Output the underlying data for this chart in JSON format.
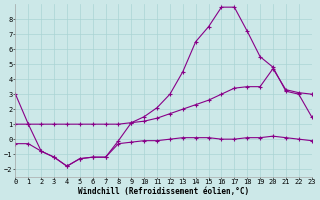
{
  "xlabel": "Windchill (Refroidissement éolien,°C)",
  "background_color": "#cce8e8",
  "line_color": "#880088",
  "xlim": [
    0,
    23
  ],
  "ylim": [
    -2.5,
    9.0
  ],
  "yticks": [
    -2,
    -1,
    0,
    1,
    2,
    3,
    4,
    5,
    6,
    7,
    8
  ],
  "xticks": [
    0,
    1,
    2,
    3,
    4,
    5,
    6,
    7,
    8,
    9,
    10,
    11,
    12,
    13,
    14,
    15,
    16,
    17,
    18,
    19,
    20,
    21,
    22,
    23
  ],
  "s1x": [
    0,
    1,
    2,
    3,
    4,
    5,
    6,
    7,
    8,
    9,
    10,
    11,
    12,
    13,
    14,
    15,
    16,
    17,
    18,
    19,
    20,
    21,
    22,
    23
  ],
  "s1y": [
    3.0,
    1.0,
    -0.8,
    -1.2,
    -1.8,
    -1.3,
    -1.2,
    -1.2,
    -0.1,
    1.1,
    1.5,
    2.1,
    3.0,
    4.5,
    6.5,
    7.5,
    8.8,
    8.8,
    7.2,
    5.5,
    4.8,
    3.2,
    3.0,
    1.5
  ],
  "s2x": [
    0,
    1,
    2,
    3,
    4,
    5,
    6,
    7,
    8,
    9,
    10,
    11,
    12,
    13,
    14,
    15,
    16,
    17,
    18,
    19,
    20,
    21,
    22,
    23
  ],
  "s2y": [
    1.0,
    1.0,
    1.0,
    1.0,
    1.0,
    1.0,
    1.0,
    1.0,
    1.0,
    1.1,
    1.2,
    1.4,
    1.7,
    2.0,
    2.3,
    2.6,
    3.0,
    3.4,
    3.5,
    3.5,
    4.7,
    3.3,
    3.1,
    3.0
  ],
  "s3x": [
    0,
    1,
    2,
    3,
    4,
    5,
    6,
    7,
    8,
    9,
    10,
    11,
    12,
    13,
    14,
    15,
    16,
    17,
    18,
    19,
    20,
    21,
    22,
    23
  ],
  "s3y": [
    -0.3,
    -0.3,
    -0.8,
    -1.2,
    -1.8,
    -1.3,
    -1.2,
    -1.2,
    -0.3,
    -0.2,
    -0.1,
    -0.1,
    0.0,
    0.1,
    0.1,
    0.1,
    0.0,
    0.0,
    0.1,
    0.1,
    0.2,
    0.1,
    0.0,
    -0.1
  ],
  "grid_color": "#aad4d4",
  "tick_fontsize": 5.0,
  "xlabel_fontsize": 5.5
}
